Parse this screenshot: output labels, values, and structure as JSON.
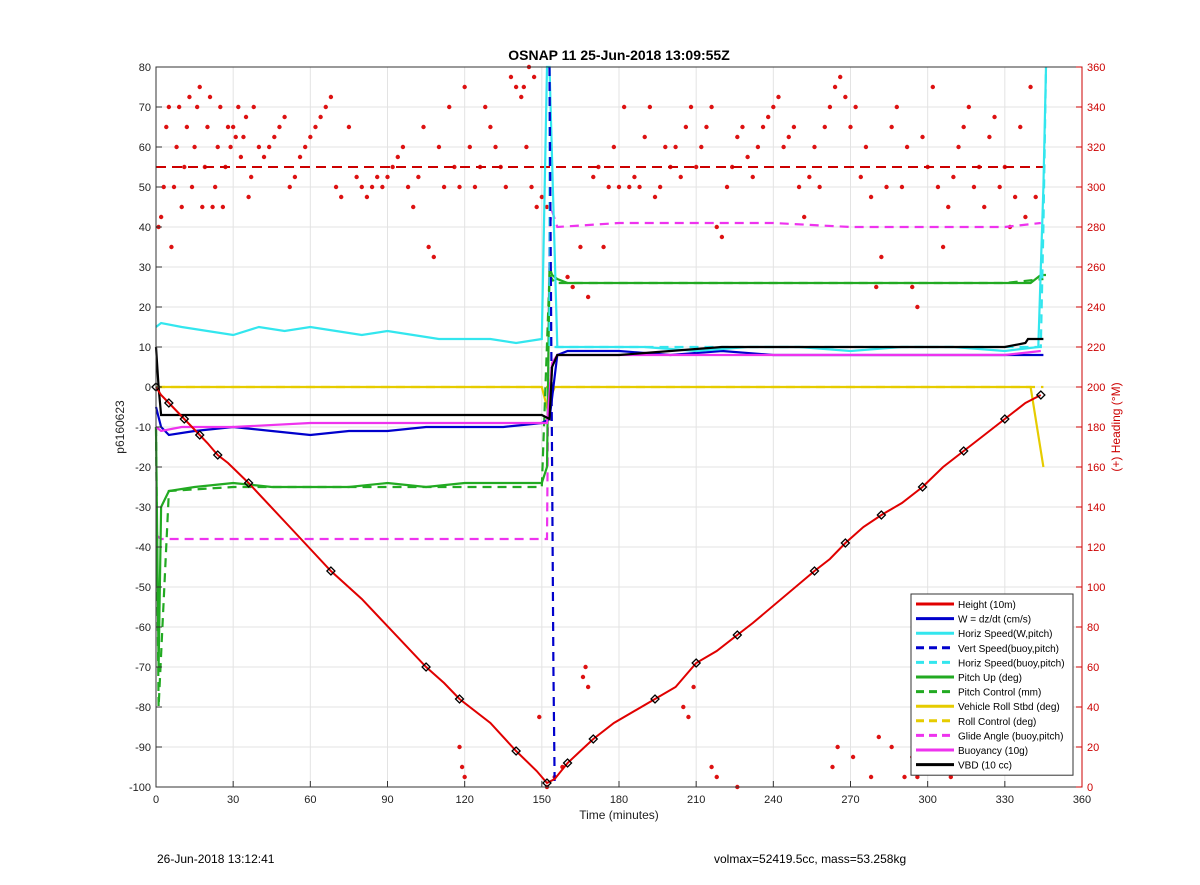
{
  "chart_data": {
    "type": "line",
    "title": "OSNAP 11 25-Jun-2018 13:09:55Z",
    "xlabel": "Time (minutes)",
    "ylabel_left": "p6160623",
    "ylabel_right": "(+) Heading (°M)",
    "xlim": [
      0,
      360
    ],
    "ylim_left": [
      -100,
      80
    ],
    "ylim_right": [
      0,
      360
    ],
    "xticks": [
      0,
      30,
      60,
      90,
      120,
      150,
      180,
      210,
      240,
      270,
      300,
      330,
      360
    ],
    "yticks_left": [
      -100,
      -90,
      -80,
      -70,
      -60,
      -50,
      -40,
      -30,
      -20,
      -10,
      0,
      10,
      20,
      30,
      40,
      50,
      60,
      70,
      80
    ],
    "yticks_right": [
      0,
      20,
      40,
      60,
      80,
      100,
      120,
      140,
      160,
      180,
      200,
      220,
      240,
      260,
      280,
      300,
      320,
      340,
      360
    ],
    "grid": true,
    "legend_position": "bottom-right",
    "series": [
      {
        "name": "Height (10m)",
        "color": "#e00000",
        "style": "solid",
        "axis": "left",
        "x": [
          0,
          2,
          5,
          8,
          11,
          14,
          17,
          20,
          24,
          28,
          36,
          52,
          68,
          80,
          105,
          112,
          118,
          130,
          140,
          148,
          152,
          155,
          160,
          165,
          170,
          178,
          194,
          202,
          210,
          218,
          226,
          232,
          256,
          262,
          268,
          275,
          282,
          290,
          298,
          306,
          314,
          322,
          330,
          338,
          344
        ],
        "y": [
          0,
          -2,
          -4,
          -6,
          -8,
          -10,
          -12,
          -14,
          -17,
          -19,
          -24,
          -35,
          -46,
          -53,
          -70,
          -74,
          -78,
          -84,
          -91,
          -96,
          -99,
          -98,
          -94,
          -91,
          -88,
          -84,
          -78,
          -75,
          -69,
          -66,
          -62,
          -59,
          -46,
          -43,
          -39,
          -35,
          -32,
          -29,
          -25,
          -20,
          -16,
          -12,
          -8,
          -4,
          -2
        ]
      },
      {
        "name": "W = dz/dt (cm/s)",
        "color": "#0000cc",
        "style": "solid",
        "axis": "left",
        "x": [
          0,
          2,
          5,
          15,
          30,
          45,
          60,
          75,
          90,
          105,
          120,
          135,
          150,
          153,
          156,
          160,
          180,
          200,
          220,
          240,
          260,
          280,
          300,
          320,
          340,
          345
        ],
        "y": [
          -5,
          -10,
          -12,
          -11,
          -10,
          -11,
          -12,
          -11,
          -11,
          -10,
          -10,
          -10,
          -9,
          -8,
          8,
          9,
          9,
          8,
          9,
          8,
          8,
          8,
          8,
          8,
          8,
          8
        ]
      },
      {
        "name": "Horiz Speed(W,pitch)",
        "color": "#33e6ee",
        "style": "solid",
        "axis": "left",
        "x": [
          0,
          2,
          10,
          20,
          30,
          40,
          50,
          60,
          70,
          80,
          90,
          100,
          110,
          120,
          130,
          140,
          150,
          152,
          153,
          156,
          170,
          190,
          210,
          230,
          250,
          270,
          290,
          310,
          330,
          343,
          345,
          346
        ],
        "y": [
          15,
          16,
          15,
          14,
          13,
          15,
          14,
          15,
          14,
          13,
          14,
          13,
          12,
          12,
          12,
          11,
          12,
          80,
          80,
          10,
          10,
          10,
          9,
          10,
          10,
          9,
          10,
          10,
          9,
          10,
          50,
          80
        ]
      },
      {
        "name": "Vert Speed(buoy,pitch)",
        "color": "#0000cc",
        "style": "dashed",
        "axis": "left",
        "x": [
          153,
          153.5,
          154,
          154.5,
          155
        ],
        "y": [
          80,
          30,
          -20,
          -70,
          -100
        ]
      },
      {
        "name": "Horiz Speed(buoy,pitch)",
        "color": "#33e6ee",
        "style": "dashed",
        "axis": "left",
        "x": [
          153,
          153,
          344,
          345,
          346
        ],
        "y": [
          80,
          10,
          10,
          40,
          80
        ]
      },
      {
        "name": "Pitch Up (deg)",
        "color": "#22aa22",
        "style": "solid",
        "axis": "left",
        "x": [
          0,
          1,
          2,
          5,
          15,
          30,
          45,
          60,
          75,
          90,
          105,
          120,
          135,
          150,
          152,
          153,
          154,
          156,
          160,
          180,
          200,
          220,
          240,
          260,
          280,
          300,
          320,
          340,
          344,
          346
        ],
        "y": [
          -10,
          -70,
          -30,
          -26,
          -25,
          -24,
          -25,
          -25,
          -25,
          -24,
          -25,
          -24,
          -24,
          -24,
          -20,
          30,
          28,
          27,
          26,
          26,
          26,
          26,
          26,
          26,
          26,
          26,
          26,
          26,
          28,
          28
        ]
      },
      {
        "name": "Pitch Control (mm)",
        "color": "#22aa22",
        "style": "dashed",
        "axis": "left",
        "x": [
          0,
          1,
          5,
          30,
          60,
          90,
          120,
          150,
          153,
          155,
          180,
          210,
          240,
          270,
          300,
          330,
          345
        ],
        "y": [
          -10,
          -80,
          -26,
          -25,
          -25,
          -25,
          -25,
          -25,
          28,
          26,
          26,
          26,
          26,
          26,
          26,
          26,
          27
        ]
      },
      {
        "name": "Vehicle Roll Stbd (deg)",
        "color": "#e6cc00",
        "style": "solid",
        "axis": "left",
        "x": [
          0,
          10,
          20,
          30,
          50,
          80,
          110,
          140,
          150,
          152,
          155,
          160,
          180,
          210,
          240,
          270,
          300,
          330,
          340,
          345
        ],
        "y": [
          0,
          0,
          0,
          0,
          0,
          0,
          0,
          0,
          0,
          -5,
          0,
          0,
          0,
          0,
          0,
          0,
          0,
          0,
          0,
          -20
        ]
      },
      {
        "name": "Roll Control (deg)",
        "color": "#e6cc00",
        "style": "dashed",
        "axis": "left",
        "x": [
          0,
          30,
          60,
          90,
          120,
          150,
          155,
          180,
          210,
          240,
          270,
          300,
          330,
          345
        ],
        "y": [
          0,
          0,
          0,
          0,
          0,
          0,
          0,
          0,
          0,
          0,
          0,
          0,
          0,
          0
        ]
      },
      {
        "name": "Glide Angle (buoy,pitch)",
        "color": "#ee33ee",
        "style": "dashed",
        "axis": "left",
        "x": [
          0,
          2,
          15,
          30,
          60,
          90,
          120,
          150,
          152,
          153,
          154,
          156,
          180,
          210,
          240,
          270,
          300,
          330,
          344
        ],
        "y": [
          -37,
          -38,
          -38,
          -38,
          -38,
          -38,
          -38,
          -38,
          -38,
          40,
          44,
          40,
          41,
          41,
          41,
          40,
          40,
          40,
          41
        ]
      },
      {
        "name": "Buoyancy (10g)",
        "color": "#ee33ee",
        "style": "solid",
        "axis": "left",
        "x": [
          0,
          2,
          10,
          30,
          60,
          90,
          120,
          150,
          152,
          154,
          156,
          180,
          210,
          240,
          270,
          300,
          330,
          344
        ],
        "y": [
          -10,
          -11,
          -10,
          -10,
          -9,
          -9,
          -9,
          -9,
          -9,
          6,
          8,
          8,
          8,
          8,
          8,
          8,
          8,
          9
        ]
      },
      {
        "name": "VBD (10 cc)",
        "color": "#000000",
        "style": "solid",
        "axis": "left",
        "x": [
          0,
          1,
          2,
          30,
          60,
          90,
          120,
          150,
          153,
          154,
          156,
          180,
          200,
          220,
          240,
          270,
          300,
          330,
          338,
          339,
          345
        ],
        "y": [
          10,
          0,
          -7,
          -7,
          -7,
          -7,
          -7,
          -7,
          -8,
          5,
          8,
          8,
          9,
          10,
          10,
          10,
          10,
          10,
          11,
          12,
          12
        ]
      }
    ],
    "heading_target_deg": 310,
    "heading_points_deg": {
      "x": [
        1,
        2,
        3,
        4,
        5,
        6,
        7,
        8,
        9,
        10,
        11,
        12,
        13,
        14,
        15,
        16,
        17,
        18,
        19,
        20,
        21,
        22,
        23,
        24,
        25,
        26,
        27,
        28,
        29,
        30,
        31,
        32,
        33,
        34,
        35,
        36,
        37,
        38,
        40,
        42,
        44,
        46,
        48,
        50,
        52,
        54,
        56,
        58,
        60,
        62,
        64,
        66,
        68,
        70,
        72,
        75,
        78,
        80,
        82,
        84,
        86,
        88,
        90,
        92,
        94,
        96,
        98,
        100,
        102,
        104,
        106,
        108,
        110,
        112,
        114,
        116,
        118,
        120,
        122,
        124,
        126,
        128,
        130,
        132,
        134,
        136,
        138,
        140,
        142,
        144,
        146,
        148,
        150,
        152,
        118,
        119,
        120,
        143,
        145,
        147,
        149,
        152,
        155,
        158,
        160,
        162,
        165,
        168,
        170,
        172,
        174,
        176,
        178,
        180,
        182,
        184,
        186,
        188,
        190,
        192,
        194,
        196,
        198,
        200,
        202,
        204,
        206,
        208,
        210,
        212,
        214,
        216,
        218,
        220,
        222,
        224,
        226,
        228,
        230,
        232,
        234,
        236,
        238,
        240,
        242,
        244,
        246,
        248,
        250,
        252,
        254,
        256,
        258,
        260,
        262,
        264,
        266,
        268,
        270,
        272,
        274,
        276,
        278,
        280,
        282,
        284,
        286,
        288,
        290,
        292,
        294,
        296,
        298,
        300,
        302,
        304,
        306,
        308,
        310,
        312,
        314,
        316,
        318,
        320,
        322,
        324,
        326,
        328,
        330,
        332,
        334,
        336,
        338,
        340,
        342,
        166,
        167,
        168,
        205,
        207,
        209,
        216,
        218,
        226,
        263,
        265,
        271,
        278,
        281,
        286,
        291,
        294,
        296,
        300,
        302,
        306,
        309
      ],
      "y": [
        280,
        285,
        300,
        330,
        340,
        270,
        300,
        320,
        340,
        290,
        310,
        330,
        345,
        300,
        320,
        340,
        350,
        290,
        310,
        330,
        345,
        290,
        300,
        320,
        340,
        290,
        310,
        330,
        320,
        330,
        325,
        340,
        315,
        325,
        335,
        295,
        305,
        340,
        320,
        315,
        320,
        325,
        330,
        335,
        300,
        305,
        315,
        320,
        325,
        330,
        335,
        340,
        345,
        300,
        295,
        330,
        305,
        300,
        295,
        300,
        305,
        300,
        305,
        310,
        315,
        320,
        300,
        290,
        305,
        330,
        270,
        265,
        320,
        300,
        340,
        310,
        300,
        350,
        320,
        300,
        310,
        340,
        330,
        320,
        310,
        300,
        355,
        350,
        345,
        320,
        300,
        290,
        295,
        290,
        20,
        10,
        5,
        350,
        360,
        355,
        35,
        0,
        5,
        10,
        255,
        250,
        270,
        245,
        305,
        310,
        270,
        300,
        320,
        300,
        340,
        300,
        305,
        300,
        325,
        340,
        295,
        300,
        320,
        310,
        320,
        305,
        330,
        340,
        310,
        320,
        330,
        340,
        280,
        275,
        300,
        310,
        325,
        330,
        315,
        305,
        320,
        330,
        335,
        340,
        345,
        320,
        325,
        330,
        300,
        285,
        305,
        320,
        300,
        330,
        340,
        350,
        355,
        345,
        330,
        340,
        305,
        320,
        295,
        250,
        265,
        300,
        330,
        340,
        300,
        320,
        250,
        240,
        325,
        310,
        350,
        300,
        270,
        290,
        305,
        320,
        330,
        340,
        300,
        310,
        290,
        325,
        335,
        300,
        310,
        280,
        295,
        330,
        285,
        350,
        295,
        55,
        60,
        50,
        40,
        35,
        50,
        10,
        5,
        0,
        10,
        20,
        15,
        5,
        25,
        20,
        5,
        15,
        5,
        10,
        25,
        15,
        5
      ]
    },
    "footer_left": "26-Jun-2018 13:12:41",
    "footer_right": "volmax=52419.5cc, mass=53.258kg"
  }
}
